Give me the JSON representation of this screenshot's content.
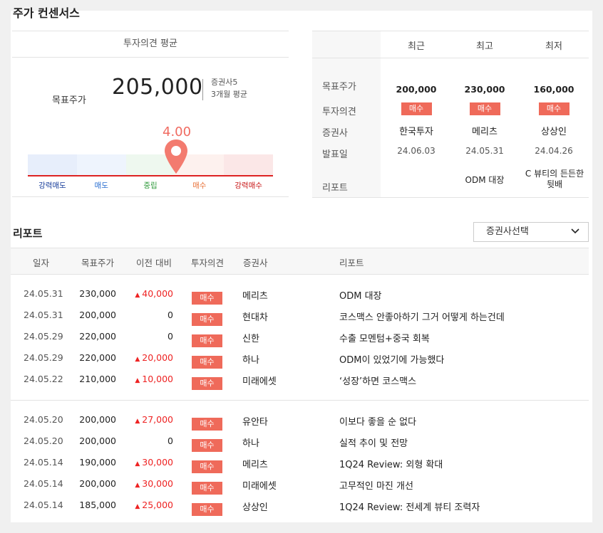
{
  "title": "주가 컨센서스",
  "consensus": {
    "header": "투자의견 평균",
    "target_label": "목표주가",
    "target_value": "205,000",
    "firms_count": "증권사5",
    "period": "3개월 평균",
    "score": "4.00",
    "scale_labels": [
      "강력매도",
      "매도",
      "중립",
      "매수",
      "강력매수"
    ],
    "scale_colors": [
      "#1a3f9b",
      "#2b6fd1",
      "#2e9a3a",
      "#e8743b",
      "#c81818"
    ]
  },
  "compare": {
    "columns": [
      "최근",
      "최고",
      "최저"
    ],
    "rows": [
      "목표주가",
      "투자의견",
      "증권사",
      "발표일",
      "리포트"
    ],
    "data": [
      {
        "price": "200,000",
        "opinion": "매수",
        "firm": "한국투자",
        "date": "24.06.03",
        "report": ""
      },
      {
        "price": "230,000",
        "opinion": "매수",
        "firm": "메리츠",
        "date": "24.05.31",
        "report": "ODM 대장"
      },
      {
        "price": "160,000",
        "opinion": "매수",
        "firm": "상상인",
        "date": "24.04.26",
        "report": "C 뷰티의 든든한 뒷배"
      }
    ]
  },
  "reports": {
    "title": "리포트",
    "select_label": "증권사선택",
    "headers": [
      "일자",
      "목표주가",
      "이전 대비",
      "투자의견",
      "증권사",
      "리포트"
    ],
    "rows": [
      {
        "date": "24.05.31",
        "price": "230,000",
        "diff": "40,000",
        "up": true,
        "opinion": "매수",
        "firm": "메리츠",
        "report": "ODM 대장"
      },
      {
        "date": "24.05.31",
        "price": "200,000",
        "diff": "0",
        "up": false,
        "opinion": "매수",
        "firm": "현대차",
        "report": "코스맥스 안좋아하기 그거 어떻게 하는건데"
      },
      {
        "date": "24.05.29",
        "price": "220,000",
        "diff": "0",
        "up": false,
        "opinion": "매수",
        "firm": "신한",
        "report": "수출 모멘텀+중국 회복"
      },
      {
        "date": "24.05.29",
        "price": "220,000",
        "diff": "20,000",
        "up": true,
        "opinion": "매수",
        "firm": "하나",
        "report": "ODM이 있었기에 가능했다"
      },
      {
        "date": "24.05.22",
        "price": "210,000",
        "diff": "10,000",
        "up": true,
        "opinion": "매수",
        "firm": "미래에셋",
        "report": "‘성장’하면 코스맥스"
      },
      {
        "date": "24.05.20",
        "price": "200,000",
        "diff": "27,000",
        "up": true,
        "opinion": "매수",
        "firm": "유안타",
        "report": "이보다 좋을 순 없다"
      },
      {
        "date": "24.05.20",
        "price": "200,000",
        "diff": "0",
        "up": false,
        "opinion": "매수",
        "firm": "하나",
        "report": "실적 추이 및 전망"
      },
      {
        "date": "24.05.14",
        "price": "190,000",
        "diff": "30,000",
        "up": true,
        "opinion": "매수",
        "firm": "메리츠",
        "report": "1Q24 Review: 외형 확대"
      },
      {
        "date": "24.05.14",
        "price": "200,000",
        "diff": "30,000",
        "up": true,
        "opinion": "매수",
        "firm": "미래에셋",
        "report": "고무적인 마진 개선"
      },
      {
        "date": "24.05.14",
        "price": "185,000",
        "diff": "25,000",
        "up": true,
        "opinion": "매수",
        "firm": "상상인",
        "report": "1Q24 Review: 전세계 뷰티 조력자"
      }
    ]
  }
}
